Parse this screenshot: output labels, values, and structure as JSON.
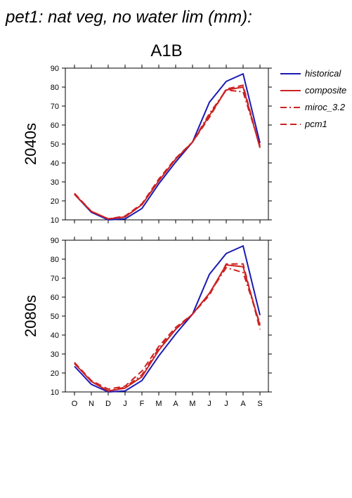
{
  "figure_title": "pet1: nat veg, no water lim (mm):",
  "scenario_label": "A1B",
  "chart_data": [
    {
      "type": "line",
      "ylabel": "2040s",
      "categories": [
        "O",
        "N",
        "D",
        "J",
        "F",
        "M",
        "A",
        "M",
        "J",
        "J",
        "A",
        "S"
      ],
      "ylim": [
        10,
        90
      ],
      "yticks": [
        10,
        20,
        30,
        40,
        50,
        60,
        70,
        80,
        90
      ],
      "series": [
        {
          "name": "historical",
          "color": "#1a1ab4",
          "dash": "solid",
          "values": [
            23.5,
            14,
            10,
            10.5,
            16,
            29,
            40.5,
            51,
            72,
            83,
            87,
            50.5
          ]
        },
        {
          "name": "composite",
          "color": "#cc2222",
          "dash": "solid",
          "values": [
            23.5,
            14.5,
            10.5,
            11.5,
            18,
            30.5,
            42,
            51,
            65,
            78.5,
            80,
            48
          ]
        },
        {
          "name": "miroc_3.2",
          "color": "#cc2222",
          "dash": "dashdot",
          "values": [
            23.5,
            14.5,
            10.5,
            11.5,
            18,
            30.5,
            42,
            51,
            66,
            78.5,
            77.5,
            49
          ]
        },
        {
          "name": "pcm1",
          "color": "#cc2222",
          "dash": "dash",
          "values": [
            24,
            14.5,
            10.5,
            12,
            18.5,
            31.5,
            42.5,
            51,
            64,
            79,
            81,
            48
          ]
        }
      ]
    },
    {
      "type": "line",
      "ylabel": "2080s",
      "categories": [
        "O",
        "N",
        "D",
        "J",
        "F",
        "M",
        "A",
        "M",
        "J",
        "J",
        "A",
        "S"
      ],
      "ylim": [
        10,
        90
      ],
      "yticks": [
        10,
        20,
        30,
        40,
        50,
        60,
        70,
        80,
        90
      ],
      "series": [
        {
          "name": "historical",
          "color": "#1a1ab4",
          "dash": "solid",
          "values": [
            23.5,
            14,
            10,
            10.5,
            16,
            29,
            40.5,
            51,
            72,
            83,
            87,
            50.5
          ]
        },
        {
          "name": "composite",
          "color": "#cc2222",
          "dash": "solid",
          "values": [
            25,
            15.5,
            10.5,
            12,
            18,
            32,
            43,
            51,
            62,
            77,
            76,
            45
          ]
        },
        {
          "name": "miroc_3.2",
          "color": "#cc2222",
          "dash": "dashdot",
          "values": [
            25,
            15.5,
            10.5,
            12.5,
            19,
            33,
            43,
            51,
            62,
            75.5,
            73,
            46
          ]
        },
        {
          "name": "pcm1",
          "color": "#cc2222",
          "dash": "dash",
          "values": [
            25.5,
            16,
            11.5,
            13,
            21,
            34,
            44,
            51,
            61,
            77.5,
            77.5,
            43
          ]
        }
      ]
    }
  ]
}
